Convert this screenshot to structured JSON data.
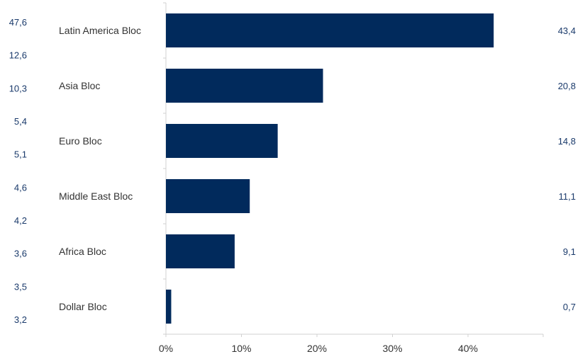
{
  "chart_data": {
    "type": "bar",
    "orientation": "horizontal",
    "categories": [
      "Latin America Bloc",
      "Asia Bloc",
      "Euro Bloc",
      "Middle East Bloc",
      "Africa Bloc",
      "Dollar Bloc"
    ],
    "values": [
      43.4,
      20.8,
      14.8,
      11.1,
      9.1,
      0.7
    ],
    "value_labels": [
      "43,4",
      "20,8",
      "14,8",
      "11,1",
      "9,1",
      "0,7"
    ],
    "left_labels": [
      "47,6",
      "12,6",
      "10,3",
      "5,4",
      "5,1",
      "4,6",
      "4,2",
      "3,6",
      "3,5",
      "3,2"
    ],
    "x_ticks": [
      0,
      10,
      20,
      30,
      40
    ],
    "x_tick_labels": [
      "0%",
      "10%",
      "20%",
      "30%",
      "40%"
    ],
    "xlim": [
      0,
      50
    ],
    "title": "",
    "xlabel": "",
    "ylabel": "",
    "grid": false,
    "colors": {
      "bar": "#012a5c",
      "number_text": "#1a3a6b",
      "category_text": "#333333",
      "axis": "#d0d0d0"
    }
  }
}
